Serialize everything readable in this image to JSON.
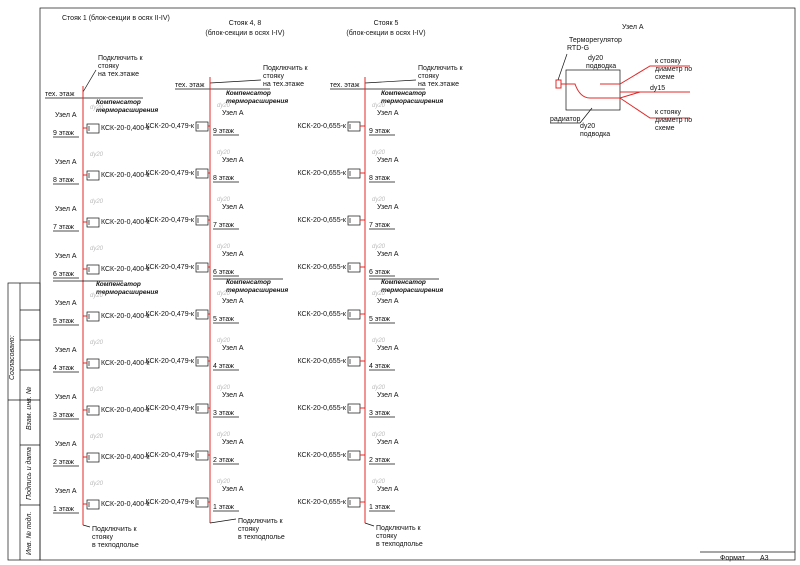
{
  "risers": [
    {
      "title": "Стояк 1  (блок-секции в осях II-IV)",
      "top_note": [
        "Подключить к",
        "стояку",
        "на тех.этаже"
      ],
      "tech_floor": "тех. этаж",
      "compensator": [
        "Компенсатор",
        "терморасширения"
      ],
      "node": "Узел А",
      "device": "КСК-20-0,400-к",
      "pipe": "dy20",
      "floors": [
        "9 этаж",
        "8 этаж",
        "7 этаж",
        "6 этаж",
        "5 этаж",
        "4 этаж",
        "3 этаж",
        "2 этаж",
        "1 этаж"
      ],
      "bottom_note": [
        "Подключить к",
        "стояку",
        "в техподполье"
      ]
    },
    {
      "title": "Стояк 4, 8",
      "subtitle": "(блок-секции в осях I-IV)",
      "top_note": [
        "Подключить к",
        "стояку",
        "на тех.этаже"
      ],
      "tech_floor": "тех. этаж",
      "compensator": [
        "Компенсатор",
        "терморасширения"
      ],
      "node": "Узел А",
      "device": "КСК-20-0,479-к",
      "pipe": "dy20",
      "floors": [
        "9 этаж",
        "8 этаж",
        "7 этаж",
        "6 этаж",
        "5 этаж",
        "4 этаж",
        "3 этаж",
        "2 этаж",
        "1 этаж"
      ],
      "bottom_note": [
        "Подключить к",
        "стояку",
        "в техподполье"
      ]
    },
    {
      "title": "Стояк 5",
      "subtitle": "(блок-секции в осях I-IV)",
      "top_note": [
        "Подключить к",
        "стояку",
        "на тех.этаже"
      ],
      "tech_floor": "тех. этаж",
      "compensator": [
        "Компенсатор",
        "терморасширения"
      ],
      "node": "Узел А",
      "device": "КСК-20-0,655-к",
      "pipe": "dy20",
      "floors": [
        "9 этаж",
        "8 этаж",
        "7 этаж",
        "6 этаж",
        "5 этаж",
        "4 этаж",
        "3 этаж",
        "2 этаж",
        "1 этаж"
      ],
      "bottom_note": [
        "Подключить к",
        "стояку",
        "в техподполье"
      ]
    }
  ],
  "node_detail": {
    "title": "Узел А",
    "regulator": [
      "Терморегулятор",
      "RTD-G"
    ],
    "supply_top": [
      "dy20",
      "подводка"
    ],
    "riser_top": [
      "к стояку",
      "диаметр по",
      "схеме"
    ],
    "dy15": "dy15",
    "riser_bottom": [
      "к стояку",
      "диаметр по",
      "схеме"
    ],
    "radiator": "радиатор",
    "supply_bottom": [
      "dy20",
      "подводка"
    ]
  },
  "stamp": [
    "Согласовано:",
    "Взам. инв. №",
    "Подпись и дата",
    "Инв. № подл."
  ],
  "format": {
    "label": "Формат",
    "value": "А3"
  }
}
